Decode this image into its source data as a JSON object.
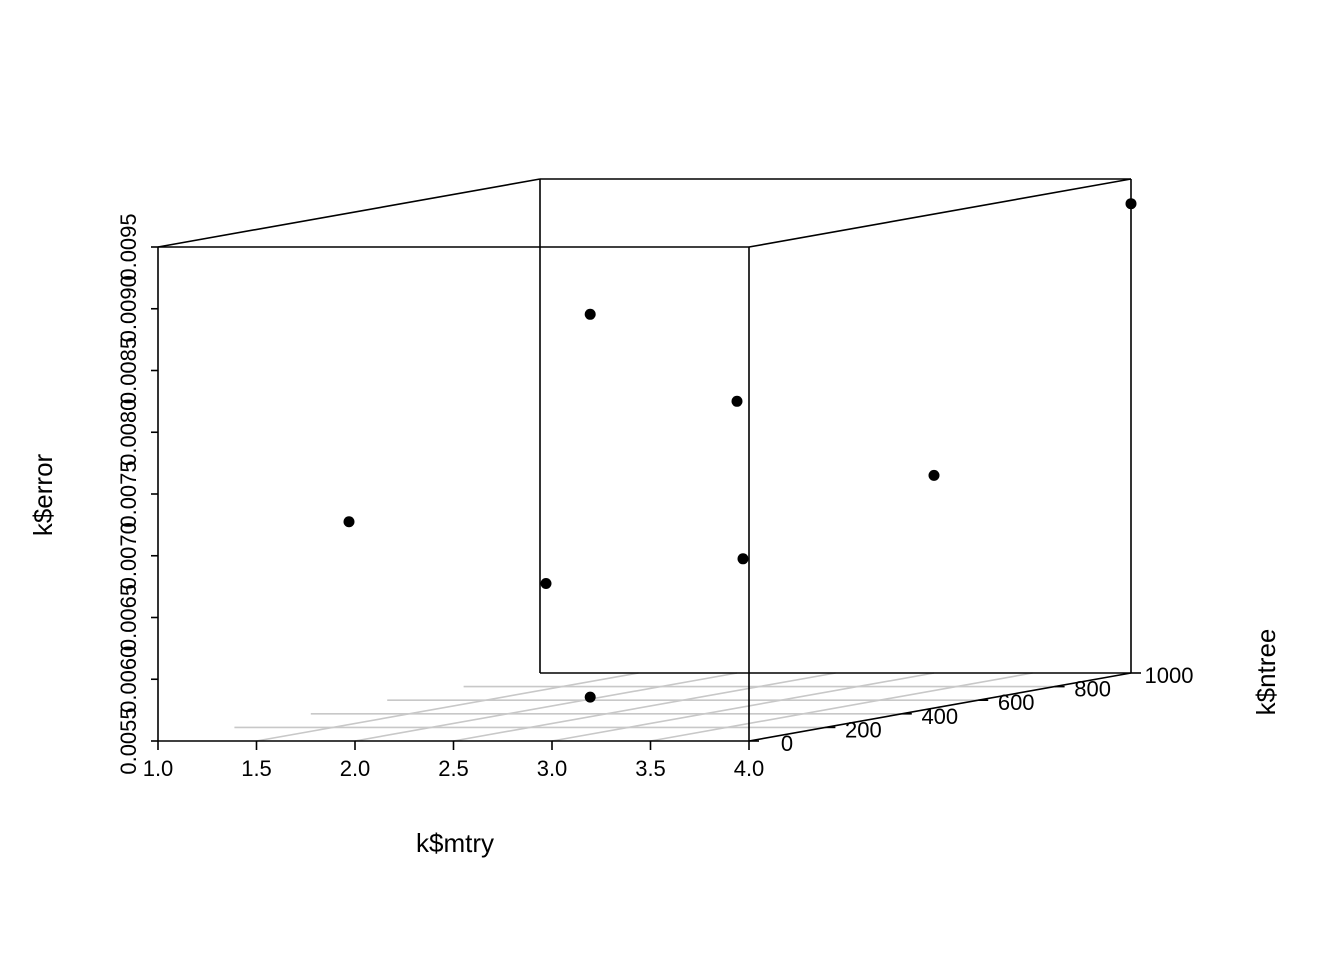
{
  "chart_data": {
    "type": "scatter",
    "title": "",
    "xlabel": "k$mtry",
    "ylabel": "k$ntree",
    "zlabel": "k$error",
    "xlim": [
      1.0,
      4.0
    ],
    "ylim": [
      0,
      1000
    ],
    "zlim": [
      0.0055,
      0.0095
    ],
    "x_ticks": [
      "1.0",
      "1.5",
      "2.0",
      "2.5",
      "3.0",
      "3.5",
      "4.0"
    ],
    "y_ticks": [
      "0",
      "200",
      "400",
      "600",
      "800",
      "1000"
    ],
    "z_ticks": [
      "0.0055",
      "0.0060",
      "0.0065",
      "0.0070",
      "0.0075",
      "0.0080",
      "0.0085",
      "0.0090",
      "0.0095"
    ],
    "grid": "on floor (x–y plane)",
    "points": [
      {
        "x": 1,
        "y": 500,
        "z": 0.007
      },
      {
        "x": 2,
        "y": 500,
        "z": 0.0065
      },
      {
        "x": 2,
        "y": 1000,
        "z": 0.0077
      },
      {
        "x": 3,
        "y": 100,
        "z": 0.0058
      },
      {
        "x": 3,
        "y": 500,
        "z": 0.0067
      },
      {
        "x": 3,
        "y": 100,
        "z": 0.0089
      },
      {
        "x": 3,
        "y": 1000,
        "z": 0.0071
      },
      {
        "x": 4,
        "y": 1000,
        "z": 0.0093
      }
    ]
  }
}
